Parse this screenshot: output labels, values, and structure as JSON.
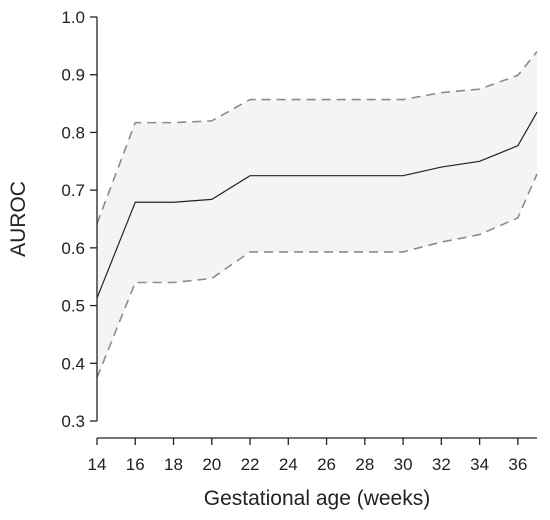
{
  "chart_data": {
    "type": "line",
    "xlabel": "Gestational age (weeks)",
    "ylabel": "AUROC",
    "xlim": [
      14,
      37
    ],
    "ylim": [
      0.3,
      1.0
    ],
    "x_ticks": [
      14,
      16,
      18,
      20,
      22,
      24,
      26,
      28,
      30,
      32,
      34,
      36
    ],
    "y_ticks": [
      "0.3",
      "0.4",
      "0.5",
      "0.6",
      "0.7",
      "0.8",
      "0.9",
      "1.0"
    ],
    "grid": false,
    "x": [
      14,
      16,
      18,
      20,
      22,
      24,
      26,
      28,
      30,
      32,
      34,
      36,
      37
    ],
    "series": [
      {
        "role": "estimate",
        "values": [
          0.513,
          0.679,
          0.679,
          0.684,
          0.725,
          0.725,
          0.725,
          0.725,
          0.725,
          0.74,
          0.75,
          0.777,
          0.835
        ]
      },
      {
        "role": "upper-bound",
        "values": [
          0.642,
          0.817,
          0.817,
          0.82,
          0.857,
          0.857,
          0.857,
          0.857,
          0.857,
          0.869,
          0.875,
          0.899,
          0.94
        ]
      },
      {
        "role": "lower-bound",
        "values": [
          0.375,
          0.54,
          0.54,
          0.547,
          0.593,
          0.593,
          0.593,
          0.593,
          0.593,
          0.61,
          0.623,
          0.652,
          0.728
        ]
      }
    ],
    "colors": {
      "estimate": "#222222",
      "bounds": "#8c8c8c",
      "band": "#f4f4f4"
    }
  }
}
